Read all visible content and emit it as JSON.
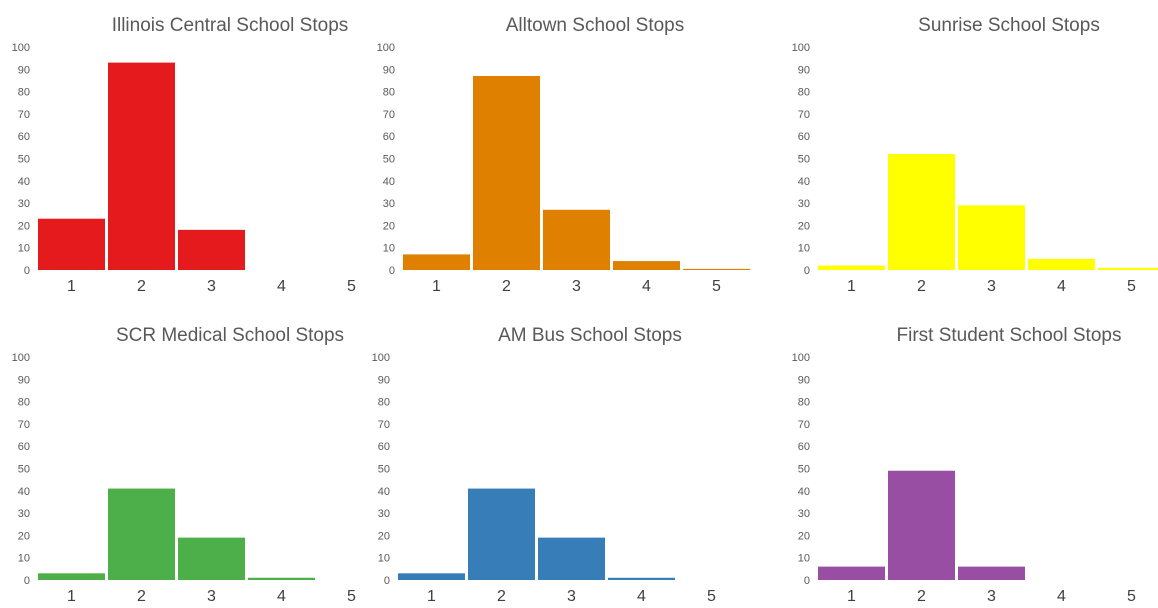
{
  "chart_data": [
    {
      "type": "bar",
      "title": "Illinois Central School Stops",
      "categories": [
        "1",
        "2",
        "3",
        "4",
        "5"
      ],
      "values": [
        23,
        93,
        18,
        0,
        0
      ],
      "color": "#e41a1c",
      "ylim": [
        0,
        100
      ],
      "yticks": [
        "0",
        "10",
        "20",
        "30",
        "40",
        "50",
        "60",
        "70",
        "80",
        "90",
        "100"
      ],
      "grid": false,
      "legend": "none"
    },
    {
      "type": "bar",
      "title": "Alltown School Stops",
      "categories": [
        "1",
        "2",
        "3",
        "4",
        "5"
      ],
      "values": [
        7,
        87,
        27,
        4,
        0.5
      ],
      "color": "#e08000",
      "ylim": [
        0,
        100
      ],
      "yticks": [
        "0",
        "10",
        "20",
        "30",
        "40",
        "50",
        "60",
        "70",
        "80",
        "90",
        "100"
      ],
      "grid": false,
      "legend": "none"
    },
    {
      "type": "bar",
      "title": "Sunrise School Stops",
      "categories": [
        "1",
        "2",
        "3",
        "4",
        "5"
      ],
      "values": [
        2,
        52,
        29,
        5,
        1
      ],
      "color": "#ffff00",
      "ylim": [
        0,
        100
      ],
      "yticks": [
        "0",
        "10",
        "20",
        "30",
        "40",
        "50",
        "60",
        "70",
        "80",
        "90",
        "100"
      ],
      "grid": false,
      "legend": "none"
    },
    {
      "type": "bar",
      "title": "SCR Medical School Stops",
      "categories": [
        "1",
        "2",
        "3",
        "4",
        "5"
      ],
      "values": [
        3,
        41,
        19,
        1,
        0
      ],
      "color": "#4daf4a",
      "ylim": [
        0,
        100
      ],
      "yticks": [
        "0",
        "10",
        "20",
        "30",
        "40",
        "50",
        "60",
        "70",
        "80",
        "90",
        "100"
      ],
      "grid": false,
      "legend": "none"
    },
    {
      "type": "bar",
      "title": "AM Bus School Stops",
      "categories": [
        "1",
        "2",
        "3",
        "4",
        "5"
      ],
      "values": [
        3,
        41,
        19,
        1,
        0
      ],
      "color": "#377eb8",
      "ylim": [
        0,
        100
      ],
      "yticks": [
        "0",
        "10",
        "20",
        "30",
        "40",
        "50",
        "60",
        "70",
        "80",
        "90",
        "100"
      ],
      "grid": false,
      "legend": "none"
    },
    {
      "type": "bar",
      "title": "First Student School Stops",
      "categories": [
        "1",
        "2",
        "3",
        "4",
        "5"
      ],
      "values": [
        6,
        49,
        6,
        0,
        0
      ],
      "color": "#984ea3",
      "ylim": [
        0,
        100
      ],
      "yticks": [
        "0",
        "10",
        "20",
        "30",
        "40",
        "50",
        "60",
        "70",
        "80",
        "90",
        "100"
      ],
      "grid": false,
      "legend": "none"
    }
  ]
}
